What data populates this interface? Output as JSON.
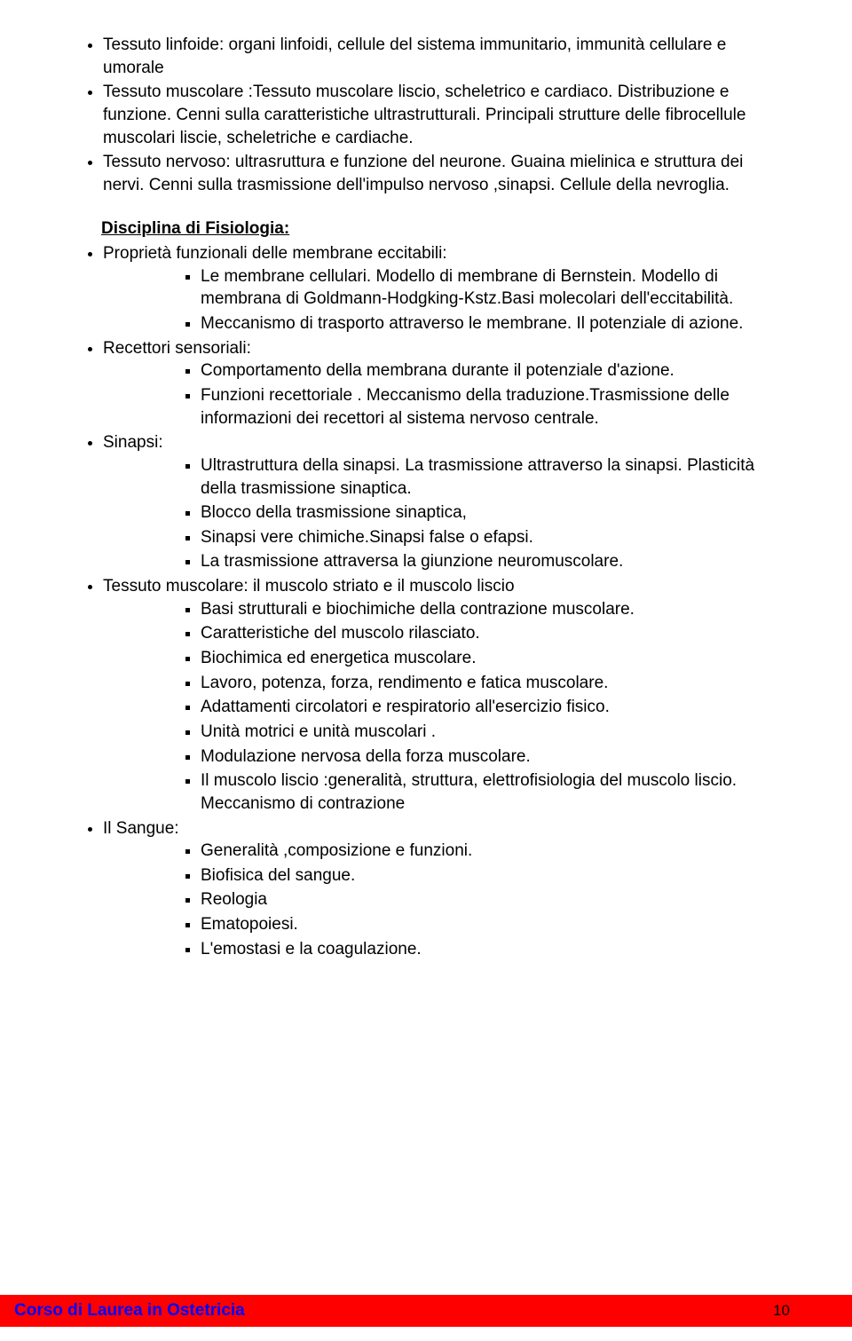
{
  "colors": {
    "background": "#ffffff",
    "text": "#000000",
    "footer_bg": "#ff0000",
    "footer_text": "#0000ff"
  },
  "typography": {
    "body_font": "Comic Sans MS",
    "body_size_pt": 14,
    "line_height": 1.35
  },
  "intro_bullets": [
    "Tessuto linfoide: organi linfoidi, cellule del sistema immunitario, immunità cellulare e umorale",
    "Tessuto muscolare :Tessuto muscolare liscio, scheletrico e cardiaco. Distribuzione e funzione. Cenni sulla caratteristiche ultrastrutturali. Principali strutture delle fibrocellule muscolari liscie, scheletriche e cardiache.",
    "Tessuto nervoso: ultrasruttura e funzione del neurone. Guaina mielinica e struttura dei nervi. Cenni sulla trasmissione dell'impulso nervoso ,sinapsi. Cellule della nevroglia."
  ],
  "section_title": "Disciplina di Fisiologia:",
  "topics": [
    {
      "label": "Proprietà funzionali delle membrane eccitabili:",
      "items": [
        "Le membrane cellulari. Modello di membrane di Bernstein. Modello di membrana di Goldmann-Hodgking-Kstz.Basi molecolari dell'eccitabilità.",
        "Meccanismo di trasporto attraverso le membrane. Il potenziale di azione."
      ]
    },
    {
      "label": "Recettori sensoriali:",
      "items": [
        "Comportamento della membrana  durante il potenziale d'azione.",
        "Funzioni recettoriale . Meccanismo della traduzione.Trasmissione delle  informazioni dei recettori al sistema nervoso centrale."
      ]
    },
    {
      "label": "Sinapsi:",
      "items": [
        "Ultrastruttura della sinapsi. La trasmissione attraverso la sinapsi. Plasticità della trasmissione sinaptica.",
        " Blocco della trasmissione sinaptica,",
        "Sinapsi vere chimiche.Sinapsi false o efapsi.",
        "La trasmissione attraversa la giunzione neuromuscolare."
      ]
    },
    {
      "label": "Tessuto muscolare: il muscolo striato e il muscolo liscio",
      "items": [
        "Basi strutturali e biochimiche della contrazione muscolare.",
        "Caratteristiche del muscolo rilasciato.",
        "Biochimica ed energetica muscolare.",
        "Lavoro, potenza, forza, rendimento e fatica muscolare.",
        "Adattamenti circolatori e respiratorio all'esercizio fisico.",
        "Unità motrici e unità muscolari .",
        "Modulazione nervosa della forza  muscolare.",
        " Il muscolo liscio :generalità, struttura, elettrofisiologia del muscolo liscio. Meccanismo di  contrazione"
      ]
    },
    {
      "label": "Il Sangue:",
      "items": [
        "Generalità ,composizione e funzioni.",
        "Biofisica del sangue.",
        "Reologia",
        "Ematopoiesi.",
        "L'emostasi e la coagulazione."
      ]
    }
  ],
  "footer": {
    "course": "Corso di Laurea in Ostetricia",
    "page_number": "10"
  }
}
